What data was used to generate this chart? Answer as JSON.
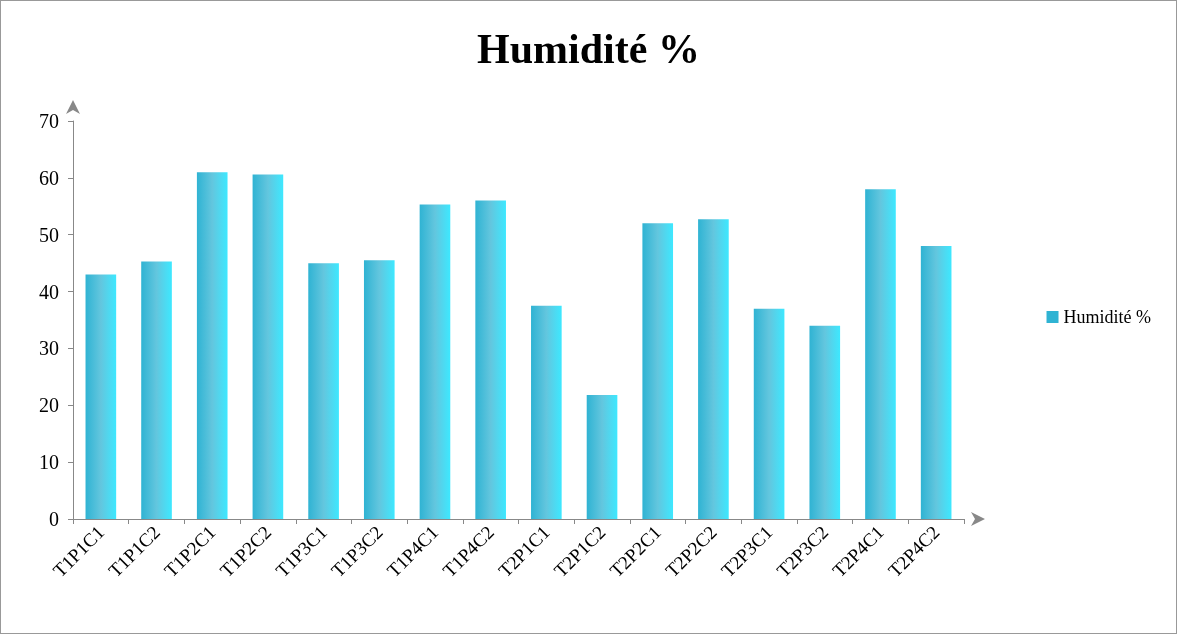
{
  "chart_data": {
    "type": "bar",
    "title": "Humidité %",
    "categories": [
      "T1P1C1",
      "T1P1C2",
      "T1P2C1",
      "T1P2C2",
      "T1P3C1",
      "T1P3C2",
      "T1P4C1",
      "T1P4C2",
      "T2P1C1",
      "T2P1C2",
      "T2P2C1",
      "T2P2C2",
      "T2P3C1",
      "T2P3C2",
      "T2P4C1",
      "T2P4C2"
    ],
    "series": [
      {
        "name": "Humidité %",
        "color": "#2fb3d3",
        "values": [
          43,
          45.3,
          61,
          60.6,
          45,
          45.5,
          55.3,
          56,
          37.5,
          21.8,
          52,
          52.7,
          37,
          34,
          58,
          48
        ]
      }
    ],
    "ylim": [
      0,
      70
    ],
    "yticks": [
      0,
      10,
      20,
      30,
      40,
      50,
      60,
      70
    ],
    "grid": false,
    "legend": "right"
  }
}
